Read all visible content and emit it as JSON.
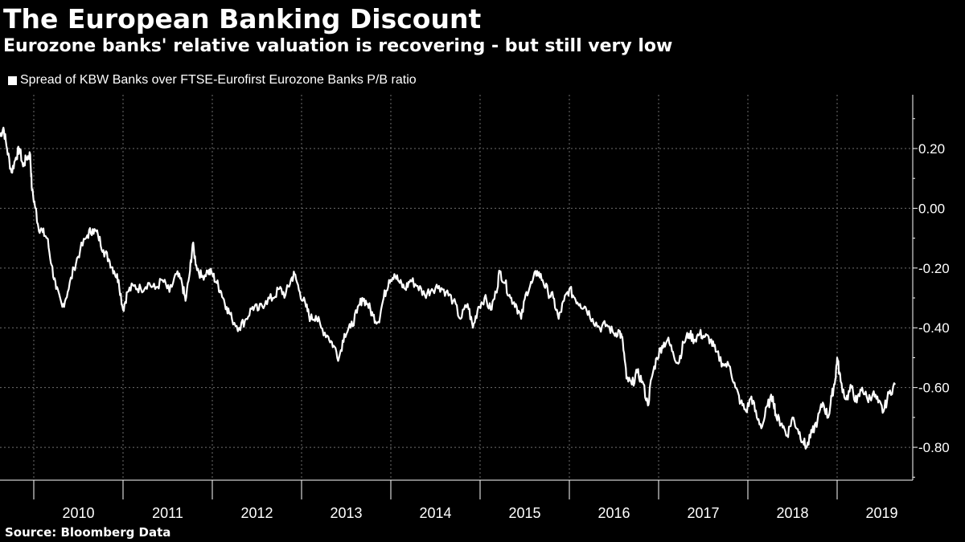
{
  "header": {
    "title": "The European Banking Discount",
    "subtitle": "Eurozone banks' relative valuation is recovering - but still very low"
  },
  "legend": {
    "label": "Spread of KBW Banks over FTSE-Eurofirst Eurozone Banks P/B ratio"
  },
  "footer": {
    "source": "Source: Bloomberg Data"
  },
  "colors": {
    "background": "#000000",
    "line": "#ffffff",
    "grid": "#6e6e6e",
    "text": "#ffffff"
  },
  "chart_data": {
    "type": "line",
    "title": "The European Banking Discount",
    "subtitle": "Eurozone banks' relative valuation is recovering - but still very low",
    "xlabel": "",
    "ylabel": "",
    "x_tick_labels": [
      "2010",
      "2011",
      "2012",
      "2013",
      "2014",
      "2015",
      "2016",
      "2017",
      "2018",
      "2019"
    ],
    "y_tick_labels": [
      "0.20",
      "0.00",
      "-0.20",
      "-0.40",
      "-0.60",
      "-0.80"
    ],
    "y_ticks": [
      0.2,
      0.0,
      -0.2,
      -0.4,
      -0.6,
      -0.8
    ],
    "ylim": [
      -0.91,
      0.38
    ],
    "xlim": [
      2009.62,
      2019.65
    ],
    "grid": true,
    "y_axis_side": "right",
    "legend_position": "top-left",
    "series": [
      {
        "name": "Spread of KBW Banks over FTSE-Eurofirst Eurozone Banks P/B ratio",
        "points": [
          [
            2009.62,
            0.24
          ],
          [
            2009.66,
            0.27
          ],
          [
            2009.7,
            0.2
          ],
          [
            2009.75,
            0.12
          ],
          [
            2009.8,
            0.17
          ],
          [
            2009.84,
            0.2
          ],
          [
            2009.88,
            0.14
          ],
          [
            2009.92,
            0.17
          ],
          [
            2009.96,
            0.18
          ],
          [
            2009.98,
            0.06
          ],
          [
            2010.02,
            0.0
          ],
          [
            2010.05,
            -0.06
          ],
          [
            2010.1,
            -0.08
          ],
          [
            2010.15,
            -0.1
          ],
          [
            2010.2,
            -0.19
          ],
          [
            2010.25,
            -0.27
          ],
          [
            2010.32,
            -0.33
          ],
          [
            2010.38,
            -0.28
          ],
          [
            2010.45,
            -0.2
          ],
          [
            2010.52,
            -0.14
          ],
          [
            2010.6,
            -0.09
          ],
          [
            2010.66,
            -0.07
          ],
          [
            2010.72,
            -0.09
          ],
          [
            2010.78,
            -0.14
          ],
          [
            2010.84,
            -0.17
          ],
          [
            2010.9,
            -0.21
          ],
          [
            2010.95,
            -0.24
          ],
          [
            2011.0,
            -0.34
          ],
          [
            2011.05,
            -0.28
          ],
          [
            2011.12,
            -0.26
          ],
          [
            2011.2,
            -0.27
          ],
          [
            2011.28,
            -0.25
          ],
          [
            2011.36,
            -0.27
          ],
          [
            2011.44,
            -0.24
          ],
          [
            2011.52,
            -0.28
          ],
          [
            2011.6,
            -0.22
          ],
          [
            2011.66,
            -0.25
          ],
          [
            2011.7,
            -0.31
          ],
          [
            2011.75,
            -0.21
          ],
          [
            2011.78,
            -0.12
          ],
          [
            2011.82,
            -0.19
          ],
          [
            2011.88,
            -0.23
          ],
          [
            2011.95,
            -0.21
          ],
          [
            2012.0,
            -0.22
          ],
          [
            2012.05,
            -0.25
          ],
          [
            2012.1,
            -0.28
          ],
          [
            2012.16,
            -0.33
          ],
          [
            2012.22,
            -0.37
          ],
          [
            2012.3,
            -0.4
          ],
          [
            2012.38,
            -0.37
          ],
          [
            2012.45,
            -0.33
          ],
          [
            2012.52,
            -0.34
          ],
          [
            2012.6,
            -0.31
          ],
          [
            2012.68,
            -0.3
          ],
          [
            2012.75,
            -0.27
          ],
          [
            2012.82,
            -0.29
          ],
          [
            2012.88,
            -0.24
          ],
          [
            2012.92,
            -0.22
          ],
          [
            2012.98,
            -0.28
          ],
          [
            2013.05,
            -0.33
          ],
          [
            2013.1,
            -0.37
          ],
          [
            2013.16,
            -0.36
          ],
          [
            2013.22,
            -0.4
          ],
          [
            2013.3,
            -0.43
          ],
          [
            2013.36,
            -0.46
          ],
          [
            2013.42,
            -0.5
          ],
          [
            2013.48,
            -0.42
          ],
          [
            2013.55,
            -0.4
          ],
          [
            2013.62,
            -0.35
          ],
          [
            2013.68,
            -0.3
          ],
          [
            2013.74,
            -0.32
          ],
          [
            2013.8,
            -0.36
          ],
          [
            2013.86,
            -0.38
          ],
          [
            2013.92,
            -0.3
          ],
          [
            2013.98,
            -0.24
          ],
          [
            2014.04,
            -0.22
          ],
          [
            2014.1,
            -0.25
          ],
          [
            2014.16,
            -0.27
          ],
          [
            2014.22,
            -0.24
          ],
          [
            2014.3,
            -0.26
          ],
          [
            2014.38,
            -0.29
          ],
          [
            2014.46,
            -0.27
          ],
          [
            2014.54,
            -0.26
          ],
          [
            2014.62,
            -0.28
          ],
          [
            2014.7,
            -0.31
          ],
          [
            2014.78,
            -0.37
          ],
          [
            2014.86,
            -0.32
          ],
          [
            2014.92,
            -0.4
          ],
          [
            2014.98,
            -0.33
          ],
          [
            2015.05,
            -0.3
          ],
          [
            2015.12,
            -0.34
          ],
          [
            2015.18,
            -0.28
          ],
          [
            2015.22,
            -0.21
          ],
          [
            2015.28,
            -0.25
          ],
          [
            2015.34,
            -0.3
          ],
          [
            2015.4,
            -0.32
          ],
          [
            2015.46,
            -0.37
          ],
          [
            2015.52,
            -0.28
          ],
          [
            2015.58,
            -0.25
          ],
          [
            2015.64,
            -0.21
          ],
          [
            2015.7,
            -0.24
          ],
          [
            2015.76,
            -0.28
          ],
          [
            2015.82,
            -0.3
          ],
          [
            2015.88,
            -0.37
          ],
          [
            2015.94,
            -0.31
          ],
          [
            2016.0,
            -0.27
          ],
          [
            2016.06,
            -0.3
          ],
          [
            2016.12,
            -0.32
          ],
          [
            2016.18,
            -0.33
          ],
          [
            2016.26,
            -0.37
          ],
          [
            2016.34,
            -0.4
          ],
          [
            2016.42,
            -0.39
          ],
          [
            2016.5,
            -0.42
          ],
          [
            2016.56,
            -0.41
          ],
          [
            2016.6,
            -0.45
          ],
          [
            2016.64,
            -0.57
          ],
          [
            2016.7,
            -0.59
          ],
          [
            2016.76,
            -0.55
          ],
          [
            2016.82,
            -0.58
          ],
          [
            2016.88,
            -0.66
          ],
          [
            2016.92,
            -0.57
          ],
          [
            2016.98,
            -0.5
          ],
          [
            2017.04,
            -0.46
          ],
          [
            2017.1,
            -0.44
          ],
          [
            2017.16,
            -0.48
          ],
          [
            2017.22,
            -0.52
          ],
          [
            2017.28,
            -0.45
          ],
          [
            2017.34,
            -0.42
          ],
          [
            2017.4,
            -0.44
          ],
          [
            2017.46,
            -0.42
          ],
          [
            2017.52,
            -0.43
          ],
          [
            2017.58,
            -0.44
          ],
          [
            2017.64,
            -0.48
          ],
          [
            2017.72,
            -0.52
          ],
          [
            2017.8,
            -0.53
          ],
          [
            2017.86,
            -0.6
          ],
          [
            2017.92,
            -0.65
          ],
          [
            2017.98,
            -0.68
          ],
          [
            2018.04,
            -0.63
          ],
          [
            2018.1,
            -0.7
          ],
          [
            2018.16,
            -0.73
          ],
          [
            2018.22,
            -0.66
          ],
          [
            2018.28,
            -0.63
          ],
          [
            2018.32,
            -0.7
          ],
          [
            2018.38,
            -0.72
          ],
          [
            2018.44,
            -0.76
          ],
          [
            2018.5,
            -0.7
          ],
          [
            2018.56,
            -0.74
          ],
          [
            2018.62,
            -0.78
          ],
          [
            2018.66,
            -0.8
          ],
          [
            2018.72,
            -0.75
          ],
          [
            2018.78,
            -0.71
          ],
          [
            2018.84,
            -0.65
          ],
          [
            2018.9,
            -0.7
          ],
          [
            2018.94,
            -0.63
          ],
          [
            2018.98,
            -0.57
          ],
          [
            2019.0,
            -0.5
          ],
          [
            2019.04,
            -0.58
          ],
          [
            2019.1,
            -0.64
          ],
          [
            2019.16,
            -0.6
          ],
          [
            2019.22,
            -0.65
          ],
          [
            2019.28,
            -0.6
          ],
          [
            2019.34,
            -0.64
          ],
          [
            2019.4,
            -0.62
          ],
          [
            2019.46,
            -0.65
          ],
          [
            2019.52,
            -0.68
          ],
          [
            2019.58,
            -0.62
          ],
          [
            2019.65,
            -0.59
          ]
        ]
      }
    ]
  }
}
